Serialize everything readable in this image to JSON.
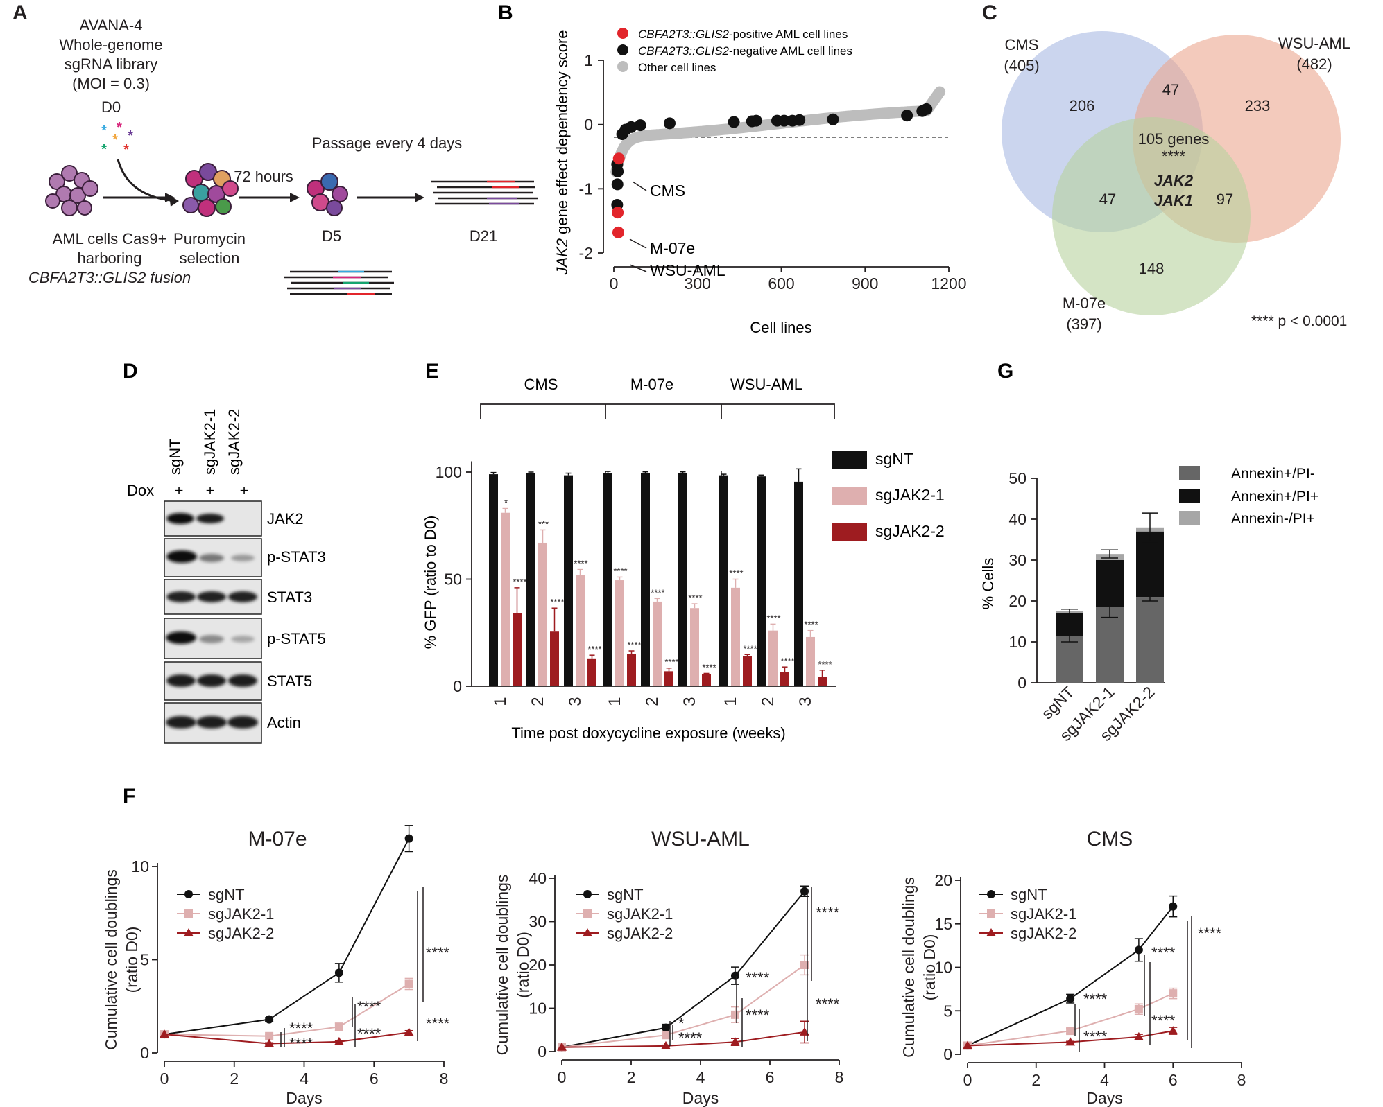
{
  "colors": {
    "black": "#111111",
    "pink": "#deafaf",
    "darkred": "#9e1c20",
    "red": "#e2252b",
    "grey": "#bdbdbd",
    "ann_dark": "#666666",
    "ann_black": "#111111",
    "ann_light": "#a6a6a6",
    "venn_cms": "#a9b9e3",
    "venn_wsu": "#eba78f",
    "venn_m07": "#b7d29f"
  },
  "panelA": {
    "letter": "A",
    "lib_line1": "AVANA-4",
    "lib_line2": "Whole-genome",
    "lib_line3": "sgRNA library",
    "lib_line4": "(MOI = 0.3)",
    "d0": "D0",
    "hours": "72 hours",
    "passage": "Passage every 4 days",
    "d5": "D5",
    "d21": "D21",
    "aml_line1": "AML cells Cas9+",
    "aml_line2": "harboring",
    "aml_line3": "CBFA2T3::GLIS2 fusion",
    "puro_line1": "Puromycin",
    "puro_line2": "selection"
  },
  "panelB": {
    "letter": "B",
    "ylabel_gene": "JAK2",
    "ylabel_rest": " gene effect dependency score",
    "xlabel": "Cell lines",
    "legend_pos_gene": "CBFA2T3::GLIS2",
    "legend_pos_rest": "-positive AML cell lines",
    "legend_neg_gene": "CBFA2T3::GLIS2",
    "legend_neg_rest": "-negative AML cell lines",
    "legend_other": "Other cell lines",
    "label_cms": "CMS",
    "label_m07e": "M-07e",
    "label_wsu": "WSU-AML"
  },
  "panelC": {
    "letter": "C",
    "cms_name": "CMS",
    "cms_total": "(405)",
    "wsu_name": "WSU-AML",
    "wsu_total": "(482)",
    "m07_name": "M-07e",
    "m07_total": "(397)",
    "only_cms": "206",
    "only_wsu": "233",
    "only_m07": "148",
    "cms_wsu": "47",
    "cms_m07": "47",
    "wsu_m07": "97",
    "center": "105 genes",
    "center_sig": "****",
    "gene1": "JAK2",
    "gene2": "JAK1",
    "pnote": "**** p < 0.0001"
  },
  "panelD": {
    "letter": "D",
    "lanes": [
      "sgNT",
      "sgJAK2-1",
      "sgJAK2-2"
    ],
    "dox": "Dox",
    "plus": "+",
    "blots": [
      "JAK2",
      "p-STAT3",
      "STAT3",
      "p-STAT5",
      "STAT5",
      "Actin"
    ]
  },
  "panelE": {
    "letter": "E",
    "groups": [
      "CMS",
      "M-07e",
      "WSU-AML"
    ],
    "week_labels": [
      "1",
      "2",
      "3"
    ],
    "legend": [
      "sgNT",
      "sgJAK2-1",
      "sgJAK2-2"
    ]
  },
  "panelG": {
    "letter": "G",
    "legend": [
      "Annexin+/PI-",
      "Annexin+/PI+",
      "Annexin-/PI+"
    ]
  },
  "panelF": {
    "letter": "F",
    "legend": [
      "sgNT",
      "sgJAK2-1",
      "sgJAK2-2"
    ]
  },
  "chart_data": [
    {
      "id": "B",
      "type": "scatter",
      "title": "",
      "xlabel": "Cell lines",
      "ylabel": "JAK2 gene effect dependency score",
      "xlim": [
        0,
        1200
      ],
      "ylim": [
        -2,
        1
      ],
      "xticks": [
        0,
        300,
        600,
        900,
        1200
      ],
      "yticks": [
        -2,
        -1,
        0,
        1
      ],
      "series": [
        {
          "name": "CBFA2T3::GLIS2-positive AML cell lines",
          "points": [
            [
              18,
              -0.53
            ],
            [
              14,
              -1.37
            ],
            [
              16,
              -1.68
            ]
          ]
        },
        {
          "name": "CBFA2T3::GLIS2-negative AML cell lines",
          "points": [
            [
              12,
              -0.62
            ],
            [
              14,
              -0.73
            ],
            [
              13,
              -0.93
            ],
            [
              12,
              -1.25
            ],
            [
              30,
              -0.15
            ],
            [
              42,
              -0.08
            ],
            [
              62,
              -0.04
            ],
            [
              95,
              -0.01
            ],
            [
              200,
              0.02
            ],
            [
              430,
              0.04
            ],
            [
              495,
              0.05
            ],
            [
              510,
              0.06
            ],
            [
              585,
              0.06
            ],
            [
              610,
              0.06
            ],
            [
              640,
              0.06
            ],
            [
              665,
              0.07
            ],
            [
              785,
              0.08
            ],
            [
              1050,
              0.14
            ],
            [
              1105,
              0.21
            ],
            [
              1120,
              0.24
            ]
          ]
        }
      ]
    },
    {
      "id": "E",
      "type": "bar",
      "xlabel": "Time post doxycycline exposure (weeks)",
      "ylabel": "% GFP (ratio to D0)",
      "ylim": [
        0,
        110
      ],
      "yticks": [
        0,
        50,
        100
      ],
      "groups": [
        "CMS",
        "M-07e",
        "WSU-AML"
      ],
      "categories": [
        "1",
        "2",
        "3"
      ],
      "series": [
        {
          "name": "sgNT",
          "values": [
            [
              99,
              99.5,
              98.5
            ],
            [
              99.5,
              99.5,
              99.5
            ],
            [
              98.5,
              98,
              95.5
            ]
          ],
          "errors": [
            [
              0.8,
              0.5,
              1
            ],
            [
              0.8,
              0.6,
              0.6
            ],
            [
              0.5,
              0.6,
              6
            ]
          ],
          "sig": [
            [
              "",
              "",
              ""
            ],
            [
              "",
              "",
              ""
            ],
            [
              "",
              "",
              ""
            ]
          ]
        },
        {
          "name": "sgJAK2-1",
          "values": [
            [
              81,
              67,
              52
            ],
            [
              49.5,
              39.5,
              36.5
            ],
            [
              46,
              26,
              23
            ]
          ],
          "errors": [
            [
              2,
              6,
              2.5
            ],
            [
              1.5,
              1.5,
              2
            ],
            [
              4,
              3,
              3
            ]
          ],
          "sig": [
            [
              "*",
              "***",
              "****"
            ],
            [
              "****",
              "****",
              "****"
            ],
            [
              "****",
              "****",
              "****"
            ]
          ]
        },
        {
          "name": "sgJAK2-2",
          "values": [
            [
              34,
              25.5,
              13
            ],
            [
              15,
              7,
              5.5
            ],
            [
              14,
              6.5,
              4.5
            ]
          ],
          "errors": [
            [
              12,
              11,
              1.5
            ],
            [
              1.5,
              1.5,
              0.5
            ],
            [
              0.8,
              2.5,
              3
            ]
          ],
          "sig": [
            [
              "****",
              "****",
              "****"
            ],
            [
              "****",
              "****",
              "****"
            ],
            [
              "****",
              "****",
              "****"
            ]
          ]
        }
      ]
    },
    {
      "id": "G",
      "type": "bar",
      "stacked": true,
      "xlabel": "",
      "ylabel": "% Cells",
      "ylim": [
        0,
        50
      ],
      "yticks": [
        0,
        10,
        20,
        30,
        40,
        50
      ],
      "categories": [
        "sgNT",
        "sgJAK2-1",
        "sgJAK2-2"
      ],
      "series": [
        {
          "name": "Annexin+/PI-",
          "values": [
            11.5,
            18.5,
            21
          ],
          "errors": [
            1.5,
            2.5,
            1
          ]
        },
        {
          "name": "Annexin+/PI+",
          "values": [
            5.5,
            11.5,
            16
          ],
          "errors": [
            0,
            0,
            0
          ]
        },
        {
          "name": "Annexin-/PI+",
          "values": [
            0.5,
            1.5,
            1
          ],
          "errors": [
            0.5,
            1,
            3.5
          ]
        }
      ]
    },
    {
      "id": "F1",
      "type": "line",
      "title": "M-07e",
      "xlabel": "Days",
      "ylabel": "Cumulative cell doublings (ratio D0)",
      "xlim": [
        0,
        8
      ],
      "ylim": [
        0,
        12
      ],
      "xticks": [
        0,
        2,
        4,
        6,
        8
      ],
      "yticks": [
        0,
        5,
        10
      ],
      "x": [
        0,
        3,
        5,
        7
      ],
      "series": [
        {
          "name": "sgNT",
          "values": [
            1,
            1.8,
            4.3,
            11.5
          ],
          "errors": [
            0,
            0.1,
            0.5,
            0.7
          ]
        },
        {
          "name": "sgJAK2-1",
          "values": [
            1,
            0.9,
            1.4,
            3.7
          ],
          "errors": [
            0,
            0.1,
            0.2,
            0.3
          ]
        },
        {
          "name": "sgJAK2-2",
          "values": [
            1,
            0.5,
            0.6,
            1.1
          ],
          "errors": [
            0,
            0.05,
            0.05,
            0.1
          ]
        }
      ],
      "annotations": [
        "****",
        "****",
        "****",
        "****",
        "****",
        "****"
      ]
    },
    {
      "id": "F2",
      "type": "line",
      "title": "WSU-AML",
      "xlabel": "Days",
      "ylabel": "Cumulative cell doublings (ratio D0)",
      "xlim": [
        0,
        8
      ],
      "ylim": [
        0,
        40
      ],
      "xticks": [
        0,
        2,
        4,
        6,
        8
      ],
      "yticks": [
        0,
        10,
        20,
        30,
        40
      ],
      "x": [
        0,
        3,
        5,
        7
      ],
      "series": [
        {
          "name": "sgNT",
          "values": [
            1,
            5.5,
            17.5,
            37
          ],
          "errors": [
            0,
            0.8,
            2,
            1.2
          ]
        },
        {
          "name": "sgJAK2-1",
          "values": [
            1,
            3.8,
            8.5,
            20
          ],
          "errors": [
            0,
            0.5,
            1.8,
            2.3
          ]
        },
        {
          "name": "sgJAK2-2",
          "values": [
            1,
            1.3,
            2.2,
            4.5
          ],
          "errors": [
            0,
            0.2,
            0.8,
            2.5
          ]
        }
      ],
      "annotations": [
        "*",
        "****",
        "****",
        "****",
        "****",
        "****"
      ]
    },
    {
      "id": "F3",
      "type": "line",
      "title": "CMS",
      "xlabel": "Days",
      "ylabel": "Cumulative cell doublings (ratio D0)",
      "xlim": [
        0,
        8
      ],
      "ylim": [
        0,
        20
      ],
      "xticks": [
        0,
        2,
        4,
        6,
        8
      ],
      "yticks": [
        0,
        5,
        10,
        15,
        20
      ],
      "x": [
        0,
        3,
        5,
        6
      ],
      "series": [
        {
          "name": "sgNT",
          "values": [
            1,
            6.4,
            12,
            17
          ],
          "errors": [
            0,
            0.5,
            1.3,
            1.2
          ]
        },
        {
          "name": "sgJAK2-1",
          "values": [
            1,
            2.7,
            5.2,
            7
          ],
          "errors": [
            0,
            0.3,
            0.6,
            0.6
          ]
        },
        {
          "name": "sgJAK2-2",
          "values": [
            1,
            1.4,
            2,
            2.7
          ],
          "errors": [
            0,
            0.1,
            0.3,
            0.4
          ]
        }
      ],
      "annotations": [
        "****",
        "****",
        "****",
        "****",
        "****"
      ]
    }
  ]
}
